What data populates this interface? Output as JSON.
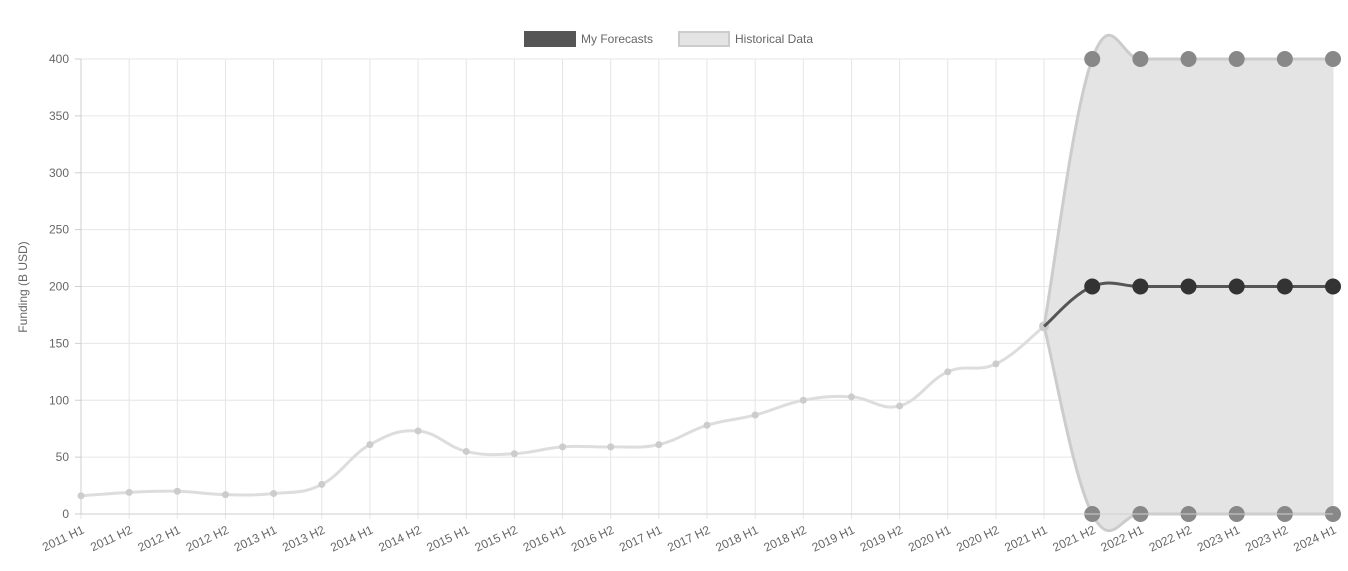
{
  "chart_data": {
    "type": "line",
    "ylabel": "Funding (B USD)",
    "ylim": [
      0,
      400
    ],
    "yticks": [
      0,
      50,
      100,
      150,
      200,
      250,
      300,
      350,
      400
    ],
    "grid": true,
    "legend_position": "top-center",
    "categories": [
      "2011 H1",
      "2011 H2",
      "2012 H1",
      "2012 H2",
      "2013 H1",
      "2013 H2",
      "2014 H1",
      "2014 H2",
      "2015 H1",
      "2015 H2",
      "2016 H1",
      "2016 H2",
      "2017 H1",
      "2017 H2",
      "2018 H1",
      "2018 H2",
      "2019 H1",
      "2019 H2",
      "2020 H1",
      "2020 H2",
      "2021 H1",
      "2021 H2",
      "2022 H1",
      "2022 H2",
      "2023 H1",
      "2023 H2",
      "2024 H1"
    ],
    "series": [
      {
        "name": "My Forecasts",
        "color": "#555555",
        "point_color": "#333333",
        "values": [
          null,
          null,
          null,
          null,
          null,
          null,
          null,
          null,
          null,
          null,
          null,
          null,
          null,
          null,
          null,
          null,
          null,
          null,
          null,
          null,
          165,
          200,
          200,
          200,
          200,
          200,
          200
        ]
      },
      {
        "name": "Historical Data",
        "color": "#dddddd",
        "fill": "#e4e4e4",
        "point_color": "#cccccc",
        "values": [
          16,
          19,
          20,
          17,
          18,
          26,
          61,
          73,
          55,
          53,
          59,
          59,
          61,
          78,
          87,
          100,
          103,
          95,
          125,
          132,
          165,
          null,
          null,
          null,
          null,
          null,
          null
        ]
      }
    ],
    "uncertainty_band": {
      "upper": [
        null,
        null,
        null,
        null,
        null,
        null,
        null,
        null,
        null,
        null,
        null,
        null,
        null,
        null,
        null,
        null,
        null,
        null,
        null,
        null,
        165,
        400,
        400,
        400,
        400,
        400,
        400
      ],
      "lower": [
        null,
        null,
        null,
        null,
        null,
        null,
        null,
        null,
        null,
        null,
        null,
        null,
        null,
        null,
        null,
        null,
        null,
        null,
        null,
        null,
        165,
        0,
        0,
        0,
        0,
        0,
        0
      ],
      "fill": "#e4e4e4",
      "line_color": "#cccccc",
      "point_color": "#888888"
    }
  }
}
